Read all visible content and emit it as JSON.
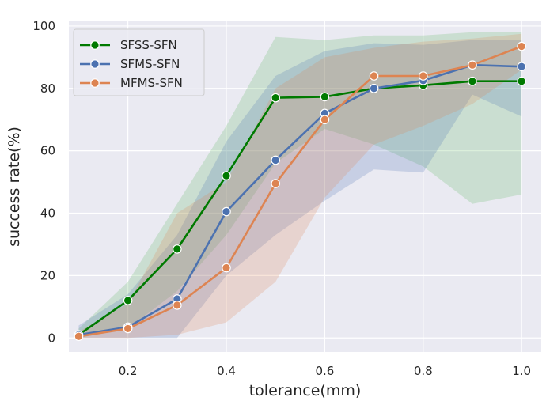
{
  "chart_data": {
    "type": "line",
    "xlabel": "tolerance(mm)",
    "ylabel": "success rate(%)",
    "xlim": [
      0.08,
      1.04
    ],
    "ylim": [
      -4.5,
      101.5
    ],
    "xticks": [
      0.2,
      0.4,
      0.6,
      0.8,
      1.0
    ],
    "xtick_labels": [
      "0.2",
      "0.4",
      "0.6",
      "0.8",
      "1.0"
    ],
    "yticks": [
      0,
      20,
      40,
      60,
      80,
      100
    ],
    "ytick_labels": [
      "0",
      "20",
      "40",
      "60",
      "80",
      "100"
    ],
    "grid": true,
    "legend_position": "top-left",
    "x": [
      0.1,
      0.2,
      0.3,
      0.4,
      0.5,
      0.6,
      0.7,
      0.8,
      0.9,
      1.0
    ],
    "series": [
      {
        "name": "SFSS-SFN",
        "color": "#007a00",
        "band_color": "#5cb85c",
        "values": [
          1,
          12,
          28.5,
          52,
          77,
          77.3,
          80,
          81,
          82.3,
          82.3
        ],
        "lower": [
          0,
          3,
          15,
          33,
          56,
          67,
          62,
          55,
          43,
          46
        ],
        "upper": [
          3,
          18,
          43,
          68,
          96.5,
          95.5,
          97,
          97,
          98,
          98
        ]
      },
      {
        "name": "SFMS-SFN",
        "color": "#4c72b0",
        "band_color": "#4c72b0",
        "values": [
          1,
          3.5,
          12.5,
          40.5,
          57,
          72,
          80,
          82.5,
          87.5,
          87
        ],
        "lower": [
          0,
          0,
          0,
          20,
          33,
          44,
          54,
          53,
          78,
          71
        ],
        "upper": [
          4,
          14,
          33,
          63,
          84,
          92,
          94.5,
          94,
          95.5,
          95.5
        ]
      },
      {
        "name": "MFMS-SFN",
        "color": "#dd8452",
        "band_color": "#dd8452",
        "values": [
          0.5,
          3,
          10.5,
          22.5,
          49.5,
          70,
          84,
          84,
          87.5,
          93.5
        ],
        "lower": [
          0,
          0,
          1,
          5,
          18,
          45,
          62,
          68,
          75,
          86
        ],
        "upper": [
          2,
          11,
          40,
          50,
          80,
          90,
          93,
          95,
          96,
          97.5
        ]
      }
    ]
  }
}
